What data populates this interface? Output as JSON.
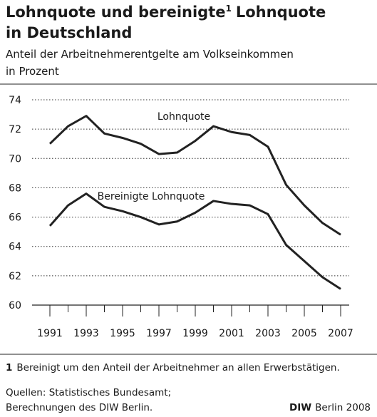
{
  "chart_data": {
    "type": "line",
    "title": {
      "line1": "Lohnquote und bereinigte",
      "marker": "1",
      "line1_rest": "Lohnquote",
      "line2": "in Deutschland"
    },
    "subtitle": [
      "Anteil der Arbeitnehmerentgelte am Volkseinkommen",
      "in Prozent"
    ],
    "x": [
      1991,
      1992,
      1993,
      1994,
      1995,
      1996,
      1997,
      1998,
      1999,
      2000,
      2001,
      2002,
      2003,
      2004,
      2005,
      2006,
      2007
    ],
    "series": [
      {
        "name": "Lohnquote",
        "color": "#222222",
        "values": [
          71.0,
          72.2,
          72.9,
          71.7,
          71.4,
          71.0,
          70.3,
          70.4,
          71.2,
          72.2,
          71.8,
          71.6,
          70.8,
          68.2,
          66.8,
          65.6,
          64.8
        ]
      },
      {
        "name": "Bereinigte Lohnquote",
        "color": "#222222",
        "values": [
          65.4,
          66.8,
          67.6,
          66.7,
          66.4,
          66.0,
          65.5,
          65.7,
          66.3,
          67.1,
          66.9,
          66.8,
          66.2,
          64.1,
          63.0,
          61.9,
          61.1
        ]
      }
    ],
    "xlim": [
      1990,
      2008
    ],
    "xticks": [
      1991,
      1993,
      1995,
      1997,
      1999,
      2001,
      2003,
      2005,
      2007
    ],
    "ylim": [
      60,
      74
    ],
    "yticks": [
      60,
      62,
      64,
      66,
      68,
      70,
      72,
      74
    ],
    "grid": true,
    "footnote": {
      "marker": "1",
      "text": "Bereinigt um den Anteil der Arbeitnehmer an allen Erwerbstätigen."
    },
    "sources": [
      "Quellen: Statistisches Bundesamt;",
      "Berechnungen des DIW Berlin."
    ],
    "credit": {
      "bold": "DIW",
      "rest": "Berlin 2008"
    }
  }
}
